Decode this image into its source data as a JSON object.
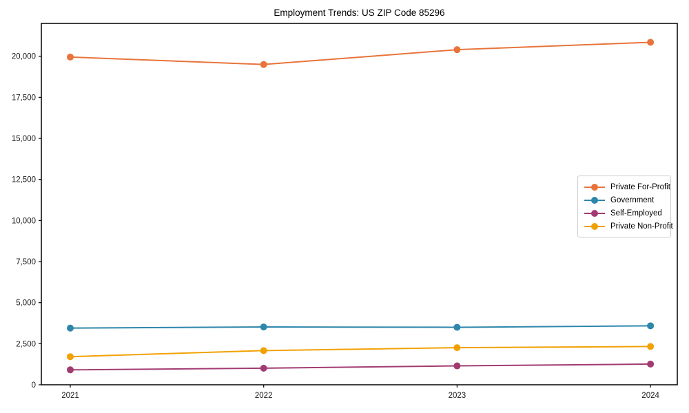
{
  "chart_data": {
    "type": "line",
    "title": "Employment Trends: US ZIP Code 85296",
    "xlabel": "",
    "ylabel": "",
    "categories": [
      "2021",
      "2022",
      "2023",
      "2024"
    ],
    "series": [
      {
        "name": "Private For-Profit",
        "color": "#E8743B",
        "values": [
          19950,
          19500,
          20400,
          20850
        ]
      },
      {
        "name": "Government",
        "color": "#2E86AB",
        "values": [
          3450,
          3520,
          3500,
          3590
        ]
      },
      {
        "name": "Self-Employed",
        "color": "#A23B72",
        "values": [
          910,
          1010,
          1150,
          1260
        ]
      },
      {
        "name": "Private Non-Profit",
        "color": "#F2A104",
        "values": [
          1710,
          2080,
          2260,
          2330
        ]
      }
    ],
    "ylim": [
      0,
      22000
    ],
    "yticks": [
      0,
      2500,
      5000,
      7500,
      10000,
      12500,
      15000,
      17500,
      20000
    ],
    "ytick_labels": [
      "0",
      "2,500",
      "5,000",
      "7,500",
      "10,000",
      "12,500",
      "15,000",
      "17,500",
      "20,000"
    ],
    "grid": false,
    "legend_position": "center right",
    "marker": "o",
    "axis_color": "#000000",
    "tick_label_color": "#1a1a1a"
  }
}
